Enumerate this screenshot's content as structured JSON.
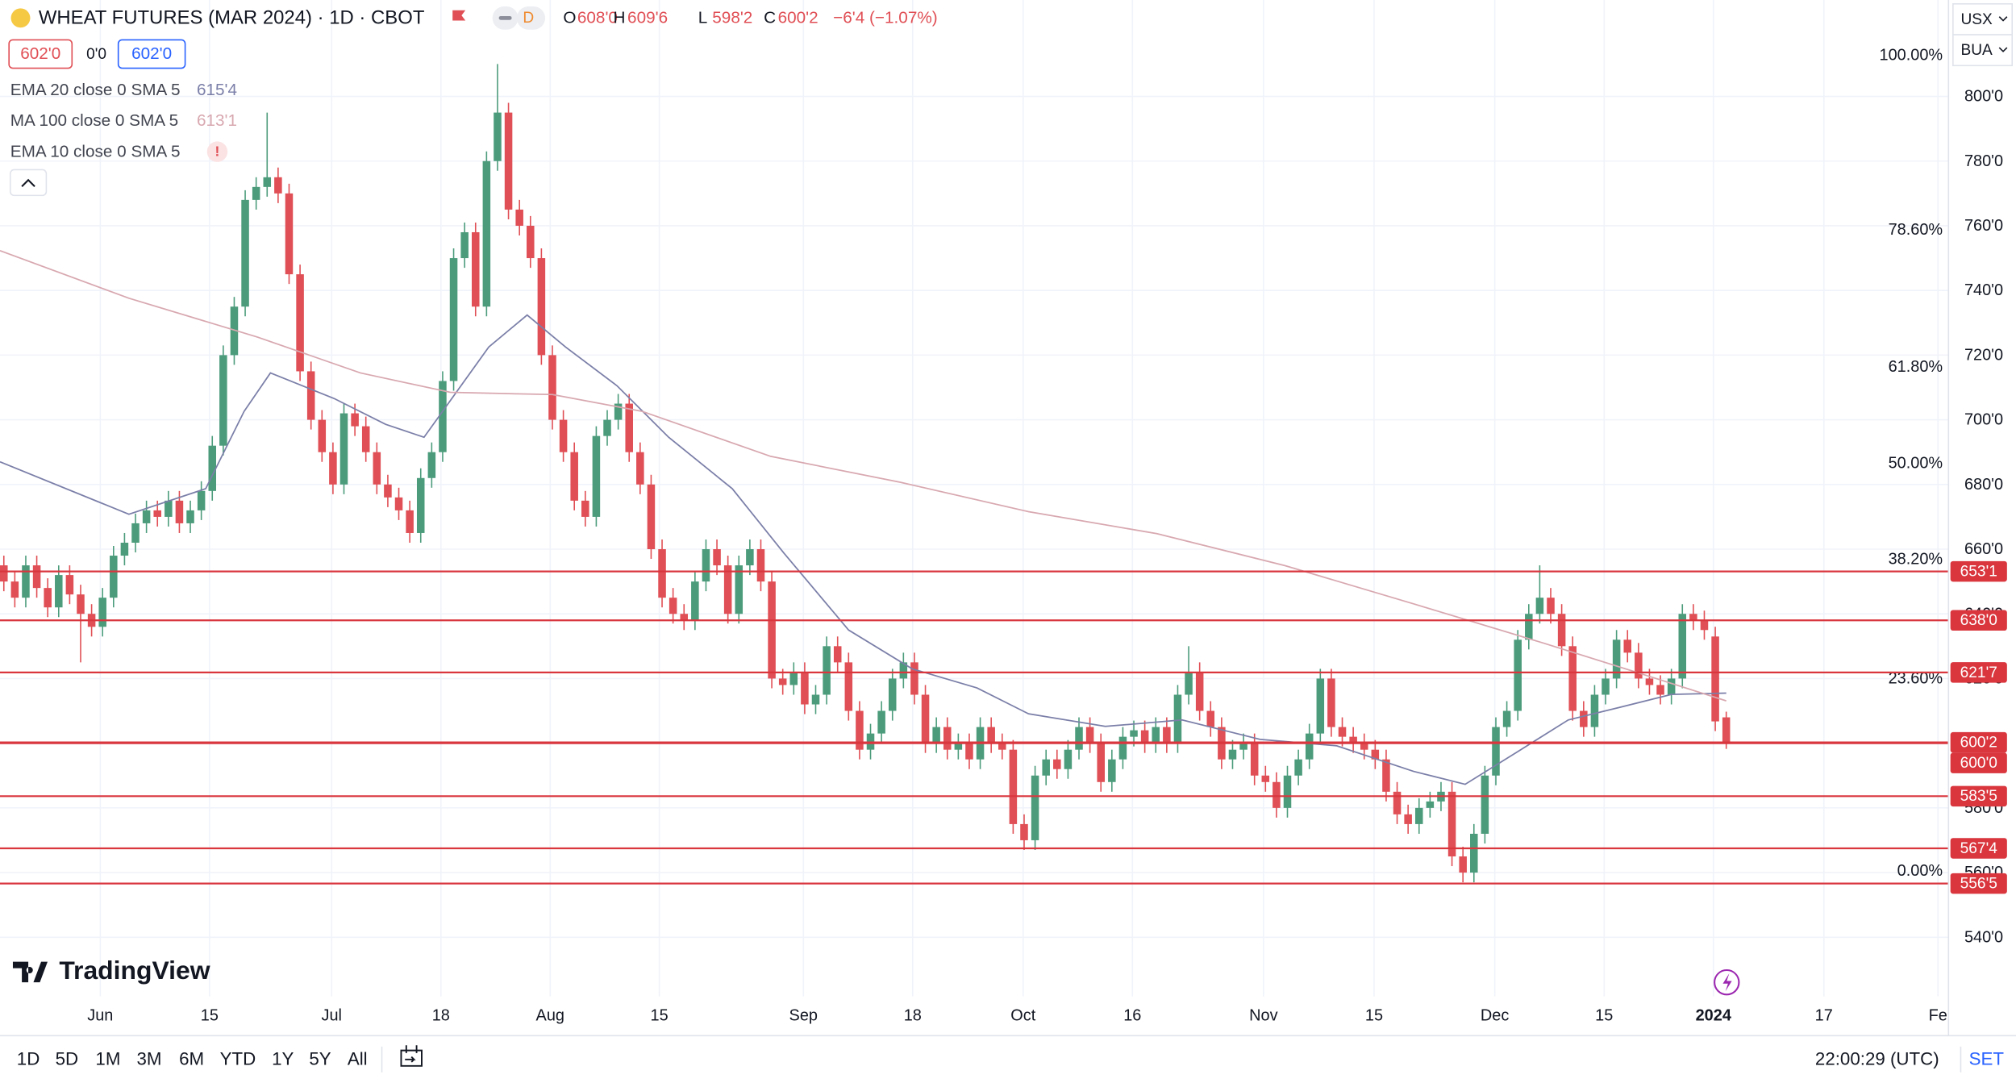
{
  "header": {
    "title": "WHEAT FUTURES (MAR 2024) · 1D · CBOT",
    "interval_badge": "D",
    "ohlc": [
      {
        "key": "O",
        "value": "608'0"
      },
      {
        "key": "H",
        "value": "609'6"
      },
      {
        "key": "L",
        "value": "598'2"
      },
      {
        "key": "C",
        "value": "600'2"
      }
    ],
    "change": "−6'4 (−1.07%)"
  },
  "order_boxes": [
    "602'0",
    "0'0",
    "602'0"
  ],
  "indicators": [
    {
      "label": "EMA 20 close 0 SMA 5",
      "value": "615'4"
    },
    {
      "label": "MA 100 close 0 SMA 5",
      "value": "613'1"
    },
    {
      "label": "EMA 10 close 0 SMA 5",
      "value": "!"
    }
  ],
  "top_right": [
    "USX",
    "BUA"
  ],
  "logo": "TradingView",
  "toolbar": {
    "ranges": [
      "1D",
      "5D",
      "1M",
      "3M",
      "6M",
      "YTD",
      "1Y",
      "5Y",
      "All"
    ],
    "time": "22:00:29 (UTC)",
    "settings": "SET"
  },
  "chart_data": {
    "type": "candlestick",
    "up_color": "#4c9c7c",
    "down_color": "#e04f55",
    "open": [
      655,
      650,
      645,
      655,
      648,
      642,
      652,
      646,
      640,
      636,
      645,
      658,
      662,
      668,
      672,
      670,
      675,
      668,
      672,
      678,
      692,
      720,
      735,
      768,
      772,
      775,
      770,
      745,
      715,
      700,
      690,
      680,
      702,
      698,
      690,
      680,
      676,
      672,
      665,
      682,
      690,
      712,
      750,
      758,
      735,
      780,
      795,
      765,
      760,
      750,
      720,
      700,
      690,
      675,
      670,
      695,
      700,
      705,
      690,
      680,
      660,
      645,
      640,
      638,
      650,
      660,
      655,
      640,
      655,
      660,
      650,
      620,
      618,
      622,
      612,
      615,
      630,
      625,
      610,
      598,
      603,
      610,
      620,
      625,
      615,
      600,
      605,
      598,
      600,
      595,
      605,
      600,
      598,
      575,
      570,
      590,
      595,
      592,
      598,
      605,
      600,
      588,
      595,
      602,
      604,
      600,
      605,
      600,
      615,
      622,
      610,
      605,
      595,
      598,
      600,
      590,
      588,
      580,
      590,
      595,
      603,
      620,
      605,
      602,
      600,
      598,
      595,
      585,
      578,
      575,
      580,
      582,
      585,
      565,
      560,
      572,
      590,
      605,
      610,
      632,
      640,
      645,
      640,
      630,
      610,
      605,
      615,
      620,
      632,
      628,
      620,
      618,
      615,
      620,
      640,
      638,
      633,
      608
    ],
    "high": [
      658,
      653,
      658,
      658,
      651,
      655,
      655,
      649,
      643,
      648,
      661,
      665,
      671,
      675,
      675,
      678,
      678,
      675,
      681,
      695,
      723,
      738,
      771,
      775,
      795,
      778,
      773,
      748,
      718,
      703,
      693,
      705,
      705,
      701,
      693,
      683,
      679,
      675,
      685,
      693,
      715,
      753,
      761,
      761,
      783,
      810,
      798,
      768,
      763,
      753,
      723,
      703,
      693,
      678,
      698,
      703,
      708,
      708,
      693,
      683,
      663,
      648,
      643,
      653,
      663,
      663,
      658,
      658,
      663,
      663,
      653,
      623,
      625,
      625,
      618,
      633,
      633,
      628,
      613,
      606,
      613,
      623,
      628,
      628,
      618,
      608,
      608,
      603,
      603,
      608,
      608,
      603,
      601,
      578,
      593,
      598,
      598,
      601,
      608,
      608,
      603,
      598,
      605,
      607,
      607,
      608,
      608,
      618,
      630,
      625,
      613,
      608,
      601,
      603,
      603,
      593,
      591,
      593,
      598,
      606,
      623,
      623,
      608,
      605,
      603,
      601,
      598,
      588,
      581,
      583,
      585,
      588,
      588,
      568,
      575,
      593,
      608,
      613,
      635,
      643,
      655,
      648,
      643,
      633,
      613,
      618,
      623,
      635,
      635,
      631,
      623,
      621,
      623,
      643,
      643,
      641,
      636,
      609.75
    ],
    "low": [
      647,
      642,
      642,
      645,
      639,
      639,
      643,
      625,
      633,
      633,
      642,
      655,
      659,
      665,
      667,
      667,
      665,
      665,
      669,
      675,
      689,
      717,
      732,
      765,
      769,
      767,
      742,
      712,
      697,
      687,
      677,
      677,
      695,
      687,
      677,
      673,
      669,
      662,
      662,
      679,
      687,
      709,
      747,
      732,
      732,
      777,
      762,
      757,
      747,
      717,
      697,
      687,
      672,
      667,
      667,
      692,
      697,
      687,
      677,
      657,
      642,
      637,
      635,
      635,
      647,
      652,
      637,
      637,
      652,
      647,
      617,
      615,
      615,
      609,
      609,
      612,
      622,
      607,
      595,
      595,
      600,
      607,
      617,
      612,
      597,
      597,
      595,
      595,
      592,
      592,
      597,
      595,
      572,
      567,
      567,
      587,
      589,
      589,
      595,
      597,
      585,
      585,
      592,
      599,
      597,
      597,
      597,
      597,
      612,
      607,
      602,
      592,
      592,
      595,
      587,
      585,
      577,
      577,
      587,
      592,
      600,
      602,
      599,
      597,
      595,
      592,
      582,
      575,
      572,
      572,
      577,
      579,
      562,
      557,
      557,
      569,
      587,
      602,
      607,
      629,
      637,
      637,
      627,
      607,
      602,
      602,
      612,
      617,
      625,
      617,
      615,
      612,
      612,
      617,
      635,
      632,
      603.75,
      598.25
    ],
    "close": [
      650,
      645,
      655,
      648,
      642,
      652,
      646,
      640,
      636,
      645,
      658,
      662,
      668,
      672,
      670,
      675,
      668,
      672,
      678,
      692,
      720,
      735,
      768,
      772,
      775,
      770,
      745,
      715,
      700,
      690,
      680,
      702,
      698,
      690,
      680,
      676,
      672,
      665,
      682,
      690,
      712,
      750,
      758,
      735,
      780,
      795,
      765,
      760,
      750,
      720,
      700,
      690,
      675,
      670,
      695,
      700,
      705,
      690,
      680,
      660,
      645,
      640,
      638,
      650,
      660,
      655,
      640,
      655,
      660,
      650,
      620,
      618,
      622,
      612,
      615,
      630,
      625,
      610,
      598,
      603,
      610,
      620,
      625,
      615,
      600,
      605,
      598,
      600,
      595,
      605,
      600,
      598,
      575,
      570,
      590,
      595,
      592,
      598,
      605,
      600,
      588,
      595,
      602,
      604,
      600,
      605,
      600,
      615,
      622,
      610,
      605,
      595,
      598,
      600,
      590,
      588,
      580,
      590,
      595,
      603,
      620,
      605,
      602,
      600,
      598,
      595,
      585,
      578,
      575,
      580,
      582,
      585,
      565,
      560,
      572,
      590,
      605,
      610,
      632,
      640,
      645,
      640,
      630,
      610,
      605,
      615,
      620,
      632,
      628,
      620,
      618,
      615,
      620,
      640,
      638,
      635,
      606.75,
      600.25
    ],
    "lines": [
      {
        "color": "#7b7fa8",
        "x": [
          -0.35,
          11.4,
          18.4,
          21.9,
          24.3,
          30.1,
          34.8,
          38.3,
          44.2,
          47.7,
          51.2,
          55.9,
          60.6,
          66.4,
          71.1,
          77.0,
          82.8,
          88.7,
          93.4,
          100.4,
          107.4,
          114.5,
          121.5,
          128.5,
          133.2,
          137.9,
          142.6,
          147.3,
          152.0,
          157.0
        ],
        "values": [
          687,
          670.8,
          678.7,
          702.6,
          714.5,
          706.6,
          698.6,
          694.6,
          722.5,
          732.4,
          722.5,
          710.5,
          694.6,
          678.7,
          658.8,
          635,
          623,
          617.1,
          609.1,
          605.2,
          607.2,
          601.2,
          599.2,
          591.3,
          587.3,
          597.2,
          607.2,
          611.1,
          615.1,
          615.5
        ]
      },
      {
        "color": "#d8a8b0",
        "x": [
          -0.35,
          11.4,
          23.1,
          32.5,
          40.7,
          50.0,
          58.2,
          69.9,
          81.7,
          93.4,
          105.1,
          116.8,
          128.5,
          140.3,
          149.6,
          157.0
        ],
        "values": [
          752.3,
          737.6,
          725.6,
          714.5,
          708.5,
          707.8,
          702.6,
          688.7,
          680.7,
          671.6,
          664.8,
          654.9,
          643.1,
          631.0,
          621.1,
          613.1
        ]
      }
    ],
    "levels": [
      {
        "value": 653.125,
        "label": "653'1"
      },
      {
        "value": 638,
        "label": "638'0"
      },
      {
        "value": 621.875,
        "label": "621'7"
      },
      {
        "value": 600.25,
        "label": "600'2"
      },
      {
        "value": 600,
        "label": "600'0"
      },
      {
        "value": 583.625,
        "label": "583'5"
      },
      {
        "value": 567.5,
        "label": "567'4"
      },
      {
        "value": 556.625,
        "label": "556'5"
      }
    ],
    "level_color": "#d9363e",
    "fib": {
      "price_at_0": 560.5,
      "price_at_100": 812.7,
      "levels": [
        {
          "value": 100,
          "label": "100.00%"
        },
        {
          "value": 78.6,
          "label": "78.60%"
        },
        {
          "value": 61.8,
          "label": "61.80%"
        },
        {
          "value": 50,
          "label": "50.00%"
        },
        {
          "value": 38.2,
          "label": "38.20%"
        },
        {
          "value": 23.6,
          "label": "23.60%"
        },
        {
          "value": 0,
          "label": "0.00%"
        }
      ]
    },
    "xlim": [
      -0.35,
      177.2
    ],
    "ylim": [
      521.7,
      829.8
    ],
    "xticks": [
      {
        "value": 8.79,
        "label": "Jun"
      },
      {
        "value": 18.75,
        "label": "15"
      },
      {
        "value": 29.88,
        "label": "Jul"
      },
      {
        "value": 39.84,
        "label": "18"
      },
      {
        "value": 49.8,
        "label": "Aug"
      },
      {
        "value": 59.75,
        "label": "15"
      },
      {
        "value": 72.88,
        "label": "Sep"
      },
      {
        "value": 82.84,
        "label": "18"
      },
      {
        "value": 92.91,
        "label": "Oct"
      },
      {
        "value": 102.87,
        "label": "16"
      },
      {
        "value": 114.82,
        "label": "Nov"
      },
      {
        "value": 124.9,
        "label": "15"
      },
      {
        "value": 135.9,
        "label": "Dec"
      },
      {
        "value": 145.87,
        "label": "15"
      },
      {
        "value": 155.83,
        "label": "2024"
      },
      {
        "value": 165.9,
        "label": "17"
      },
      {
        "value": 176.3,
        "label": "Fe"
      }
    ],
    "yticks": [
      {
        "value": 800,
        "label": "800'0"
      },
      {
        "value": 780,
        "label": "780'0"
      },
      {
        "value": 760,
        "label": "760'0"
      },
      {
        "value": 740,
        "label": "740'0"
      },
      {
        "value": 720,
        "label": "720'0"
      },
      {
        "value": 700,
        "label": "700'0"
      },
      {
        "value": 680,
        "label": "680'0"
      },
      {
        "value": 660,
        "label": "660'0"
      },
      {
        "value": 640,
        "label": "640'0"
      },
      {
        "value": 620,
        "label": "620'0"
      },
      {
        "value": 600,
        "label": "600'0"
      },
      {
        "value": 580,
        "label": "580'0"
      },
      {
        "value": 560,
        "label": "560'0"
      },
      {
        "value": 540,
        "label": "540'0"
      }
    ],
    "grid": true
  }
}
